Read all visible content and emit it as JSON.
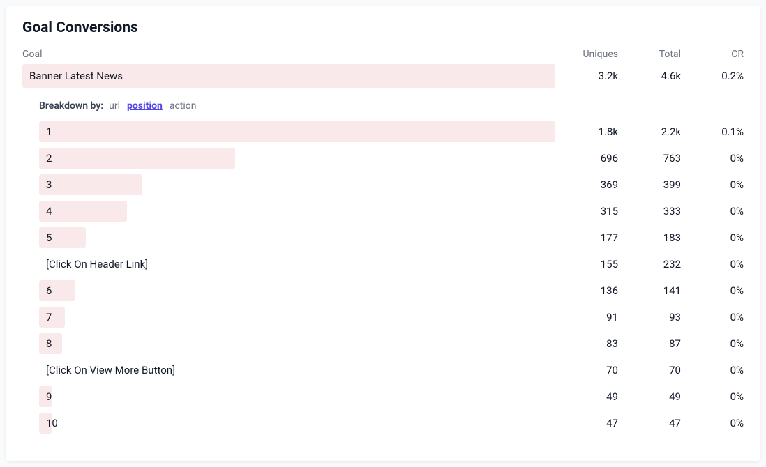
{
  "panel": {
    "title": "Goal Conversions"
  },
  "columns": {
    "goal": "Goal",
    "uniques": "Uniques",
    "total": "Total",
    "cr": "CR"
  },
  "goal": {
    "label": "Banner Latest News",
    "uniques": "3.2k",
    "total": "4.6k",
    "cr": "0.2%",
    "bar_pct": 100
  },
  "breakdown": {
    "label": "Breakdown by:",
    "tabs": [
      {
        "label": "url",
        "active": false
      },
      {
        "label": "position",
        "active": true
      },
      {
        "label": "action",
        "active": false
      }
    ]
  },
  "rows": [
    {
      "label": "1",
      "uniques": "1.8k",
      "total": "2.2k",
      "cr": "0.1%",
      "bar_pct": 100
    },
    {
      "label": "2",
      "uniques": "696",
      "total": "763",
      "cr": "0%",
      "bar_pct": 38
    },
    {
      "label": "3",
      "uniques": "369",
      "total": "399",
      "cr": "0%",
      "bar_pct": 20
    },
    {
      "label": "4",
      "uniques": "315",
      "total": "333",
      "cr": "0%",
      "bar_pct": 17
    },
    {
      "label": "5",
      "uniques": "177",
      "total": "183",
      "cr": "0%",
      "bar_pct": 9
    },
    {
      "label": "[Click On Header Link]",
      "uniques": "155",
      "total": "232",
      "cr": "0%",
      "bar_pct": 0
    },
    {
      "label": "6",
      "uniques": "136",
      "total": "141",
      "cr": "0%",
      "bar_pct": 7
    },
    {
      "label": "7",
      "uniques": "91",
      "total": "93",
      "cr": "0%",
      "bar_pct": 5
    },
    {
      "label": "8",
      "uniques": "83",
      "total": "87",
      "cr": "0%",
      "bar_pct": 4.5
    },
    {
      "label": "[Click On View More Button]",
      "uniques": "70",
      "total": "70",
      "cr": "0%",
      "bar_pct": 0
    },
    {
      "label": "9",
      "uniques": "49",
      "total": "49",
      "cr": "0%",
      "bar_pct": 2.5
    },
    {
      "label": "10",
      "uniques": "47",
      "total": "47",
      "cr": "0%",
      "bar_pct": 2.4
    }
  ],
  "colors": {
    "bar_fill": "#fae9ea",
    "active_tab": "#4f46e5",
    "text": "#111827",
    "muted": "#6b7280"
  }
}
